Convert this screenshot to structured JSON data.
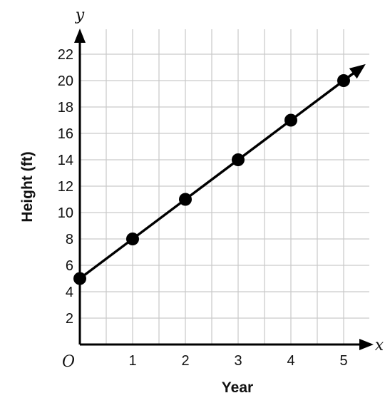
{
  "chart_data": {
    "type": "line",
    "title": "",
    "xlabel": "Year",
    "ylabel": "Height (ft)",
    "x_axis_variable": "x",
    "y_axis_variable": "y",
    "origin_label": "O",
    "x": [
      0,
      1,
      2,
      3,
      4,
      5
    ],
    "series": [
      {
        "values": [
          5,
          8,
          11,
          14,
          17,
          20
        ],
        "color": "#000000"
      }
    ],
    "xlim": [
      0,
      5.5
    ],
    "ylim": [
      0,
      24
    ],
    "x_ticks": [
      1,
      2,
      3,
      4,
      5
    ],
    "y_ticks": [
      2,
      4,
      6,
      8,
      10,
      12,
      14,
      16,
      18,
      20,
      22
    ],
    "grid": true,
    "grid_color": "#c9c9c9",
    "line_extends_with_arrow": true,
    "markers": "filled-circle"
  }
}
